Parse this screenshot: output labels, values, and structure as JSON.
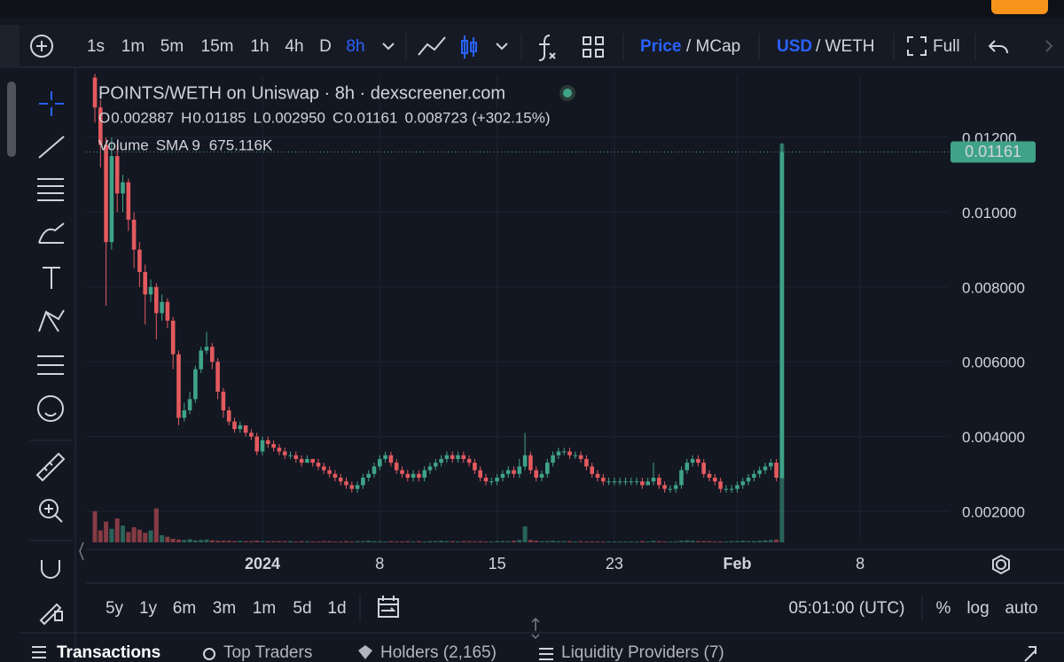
{
  "ui": {
    "intervals": [
      "1s",
      "1m",
      "5m",
      "15m",
      "1h",
      "4h",
      "D",
      "8h"
    ],
    "price": "Price",
    "mcap": "/ MCap",
    "usd": "USD",
    "weth": "/ WETH",
    "full": "Full",
    "ranges": [
      "5y",
      "1y",
      "6m",
      "3m",
      "1m",
      "5d",
      "1d"
    ],
    "clock": "05:01:00 (UTC)",
    "percent": "%",
    "log": "log",
    "auto": "auto",
    "tabs": [
      "Transactions",
      "Top Traders",
      "Holders (2,165)",
      "Liquidity Providers (7)"
    ]
  },
  "chart_data": {
    "type": "candlestick",
    "title": "POINTS/WETH on Uniswap · 8h · dexscreener.com",
    "readout": [
      [
        "O",
        "0.002887"
      ],
      [
        "H",
        "0.01185"
      ],
      [
        "L",
        "0.002950"
      ],
      [
        "C",
        "0.01161"
      ]
    ],
    "change": "0.008723 (+302.15%)",
    "volume_label": "Volume",
    "volume_sma": "SMA 9",
    "volume_sma_value": "675.116K",
    "up_color": "#3fa387",
    "down_color": "#e35a5e",
    "grid": true,
    "ylim": [
      0.00117,
      0.01366
    ],
    "yticks": [
      {
        "value": 0.002,
        "label": "0.002000"
      },
      {
        "value": 0.004,
        "label": "0.004000"
      },
      {
        "value": 0.006,
        "label": "0.006000"
      },
      {
        "value": 0.008,
        "label": "0.008000"
      },
      {
        "value": 0.01,
        "label": "0.01000"
      },
      {
        "value": 0.012,
        "label": "0.01200"
      }
    ],
    "last_price": {
      "value": 0.01161,
      "label": "0.01161"
    },
    "categories": [
      null,
      null,
      null,
      null,
      null,
      null,
      null,
      null,
      null,
      null,
      null,
      null,
      null,
      null,
      null,
      null,
      null,
      null,
      null,
      null,
      null,
      null,
      null,
      null,
      null,
      null,
      null,
      null,
      null,
      null,
      "2024",
      null,
      null,
      null,
      null,
      null,
      null,
      null,
      null,
      null,
      null,
      null,
      null,
      null,
      null,
      null,
      null,
      null,
      null,
      null,
      null,
      "8",
      null,
      null,
      null,
      null,
      null,
      null,
      null,
      null,
      null,
      null,
      null,
      null,
      null,
      null,
      null,
      null,
      null,
      null,
      null,
      null,
      "15",
      null,
      null,
      null,
      null,
      null,
      null,
      null,
      null,
      null,
      null,
      null,
      null,
      null,
      null,
      null,
      null,
      null,
      null,
      null,
      null,
      "23",
      null,
      null,
      null,
      null,
      null,
      null,
      null,
      null,
      null,
      null,
      null,
      null,
      null,
      null,
      null,
      null,
      null,
      null,
      null,
      null,
      null,
      "Feb",
      null,
      null,
      null,
      null,
      null,
      null,
      null,
      null,
      null,
      null,
      null,
      null,
      null,
      null,
      null,
      null,
      null,
      null,
      null,
      null,
      null,
      "8"
    ],
    "ohlc": [
      [
        0.0136,
        0.0137,
        0.0124,
        0.0128
      ],
      [
        0.0128,
        0.013,
        0.0112,
        0.0118
      ],
      [
        0.0118,
        0.012,
        0.0075,
        0.0092
      ],
      [
        0.0092,
        0.012,
        0.009,
        0.0115
      ],
      [
        0.0115,
        0.0118,
        0.01,
        0.0105
      ],
      [
        0.0105,
        0.011,
        0.01,
        0.0108
      ],
      [
        0.0108,
        0.0109,
        0.0095,
        0.0098
      ],
      [
        0.0098,
        0.01,
        0.0085,
        0.009
      ],
      [
        0.009,
        0.0092,
        0.008,
        0.0084
      ],
      [
        0.0084,
        0.0086,
        0.007,
        0.0078
      ],
      [
        0.0078,
        0.0082,
        0.0076,
        0.008
      ],
      [
        0.008,
        0.0081,
        0.0066,
        0.0073
      ],
      [
        0.0073,
        0.0078,
        0.0071,
        0.0076
      ],
      [
        0.0076,
        0.0077,
        0.0069,
        0.0071
      ],
      [
        0.0071,
        0.0072,
        0.0058,
        0.0062
      ],
      [
        0.0062,
        0.0063,
        0.0043,
        0.0045
      ],
      [
        0.0045,
        0.0049,
        0.0044,
        0.0047
      ],
      [
        0.0047,
        0.0052,
        0.0046,
        0.005
      ],
      [
        0.005,
        0.0059,
        0.0049,
        0.0058
      ],
      [
        0.0058,
        0.0064,
        0.0057,
        0.0063
      ],
      [
        0.0063,
        0.0068,
        0.0062,
        0.0064
      ],
      [
        0.0064,
        0.0065,
        0.0058,
        0.006
      ],
      [
        0.006,
        0.0061,
        0.005,
        0.0052
      ],
      [
        0.0052,
        0.0053,
        0.0045,
        0.0047
      ],
      [
        0.0047,
        0.0048,
        0.0043,
        0.0044
      ],
      [
        0.0044,
        0.0045,
        0.0041,
        0.0042
      ],
      [
        0.0042,
        0.0044,
        0.0041,
        0.0043
      ],
      [
        0.0043,
        0.0043,
        0.004,
        0.0041
      ],
      [
        0.0041,
        0.0042,
        0.0039,
        0.004
      ],
      [
        0.004,
        0.0041,
        0.0035,
        0.0036
      ],
      [
        0.0036,
        0.004,
        0.0035,
        0.0039
      ],
      [
        0.0039,
        0.004,
        0.0037,
        0.0038
      ],
      [
        0.0038,
        0.0039,
        0.0036,
        0.0037
      ],
      [
        0.0037,
        0.0038,
        0.0035,
        0.0036
      ],
      [
        0.0036,
        0.0037,
        0.0034,
        0.0035
      ],
      [
        0.0035,
        0.0036,
        0.0034,
        0.0035
      ],
      [
        0.0035,
        0.0036,
        0.0033,
        0.0034
      ],
      [
        0.0034,
        0.0035,
        0.0032,
        0.0033
      ],
      [
        0.0033,
        0.0035,
        0.0033,
        0.0034
      ],
      [
        0.0034,
        0.0034,
        0.0032,
        0.0033
      ],
      [
        0.0033,
        0.0034,
        0.0031,
        0.0032
      ],
      [
        0.0032,
        0.0033,
        0.003,
        0.0031
      ],
      [
        0.0031,
        0.0032,
        0.0029,
        0.003
      ],
      [
        0.003,
        0.0031,
        0.0028,
        0.0029
      ],
      [
        0.0029,
        0.003,
        0.0027,
        0.0028
      ],
      [
        0.0028,
        0.0029,
        0.0026,
        0.0027
      ],
      [
        0.0027,
        0.0028,
        0.0025,
        0.0026
      ],
      [
        0.0026,
        0.0028,
        0.0025,
        0.0027
      ],
      [
        0.0027,
        0.003,
        0.0026,
        0.0029
      ],
      [
        0.0029,
        0.0031,
        0.0028,
        0.003
      ],
      [
        0.003,
        0.0033,
        0.0029,
        0.0032
      ],
      [
        0.0032,
        0.0035,
        0.0031,
        0.0034
      ],
      [
        0.0034,
        0.0036,
        0.0033,
        0.0035
      ],
      [
        0.0035,
        0.0036,
        0.0032,
        0.0033
      ],
      [
        0.0033,
        0.0034,
        0.003,
        0.0031
      ],
      [
        0.0031,
        0.0032,
        0.0029,
        0.003
      ],
      [
        0.003,
        0.0031,
        0.0028,
        0.0029
      ],
      [
        0.0029,
        0.0031,
        0.0028,
        0.003
      ],
      [
        0.003,
        0.0031,
        0.0028,
        0.0029
      ],
      [
        0.0029,
        0.0032,
        0.0028,
        0.0031
      ],
      [
        0.0031,
        0.0033,
        0.003,
        0.0032
      ],
      [
        0.0032,
        0.0034,
        0.0031,
        0.0033
      ],
      [
        0.0033,
        0.0035,
        0.0032,
        0.0034
      ],
      [
        0.0034,
        0.0036,
        0.0033,
        0.0035
      ],
      [
        0.0035,
        0.0036,
        0.0033,
        0.0034
      ],
      [
        0.0034,
        0.0036,
        0.0033,
        0.0035
      ],
      [
        0.0035,
        0.0036,
        0.0033,
        0.0034
      ],
      [
        0.0034,
        0.0035,
        0.0032,
        0.0033
      ],
      [
        0.0033,
        0.0034,
        0.003,
        0.0031
      ],
      [
        0.0031,
        0.0032,
        0.0028,
        0.0029
      ],
      [
        0.0029,
        0.003,
        0.0027,
        0.0028
      ],
      [
        0.0028,
        0.0029,
        0.0027,
        0.0028
      ],
      [
        0.0028,
        0.003,
        0.0027,
        0.0029
      ],
      [
        0.0029,
        0.0031,
        0.0028,
        0.003
      ],
      [
        0.003,
        0.0032,
        0.0029,
        0.0031
      ],
      [
        0.0031,
        0.0032,
        0.0029,
        0.003
      ],
      [
        0.003,
        0.0034,
        0.0029,
        0.0032
      ],
      [
        0.0032,
        0.0041,
        0.0031,
        0.0035
      ],
      [
        0.0035,
        0.0036,
        0.003,
        0.0031
      ],
      [
        0.0031,
        0.0032,
        0.0028,
        0.0029
      ],
      [
        0.0029,
        0.0031,
        0.0028,
        0.003
      ],
      [
        0.003,
        0.0034,
        0.0029,
        0.0033
      ],
      [
        0.0033,
        0.0036,
        0.0032,
        0.0035
      ],
      [
        0.0035,
        0.0037,
        0.0034,
        0.0036
      ],
      [
        0.0036,
        0.0037,
        0.0035,
        0.0036
      ],
      [
        0.0036,
        0.0037,
        0.0034,
        0.0035
      ],
      [
        0.0035,
        0.0036,
        0.0034,
        0.0035
      ],
      [
        0.0035,
        0.0036,
        0.0033,
        0.0034
      ],
      [
        0.0034,
        0.0035,
        0.0031,
        0.0032
      ],
      [
        0.0032,
        0.0033,
        0.0029,
        0.003
      ],
      [
        0.003,
        0.0031,
        0.0028,
        0.0029
      ],
      [
        0.0029,
        0.003,
        0.0027,
        0.0028
      ],
      [
        0.0028,
        0.0029,
        0.0027,
        0.0028
      ],
      [
        0.0028,
        0.0029,
        0.0027,
        0.0028
      ],
      [
        0.0028,
        0.0029,
        0.0027,
        0.0028
      ],
      [
        0.0028,
        0.0029,
        0.0027,
        0.0028
      ],
      [
        0.0028,
        0.0029,
        0.0027,
        0.0028
      ],
      [
        0.0028,
        0.0029,
        0.0027,
        0.0028
      ],
      [
        0.0028,
        0.0029,
        0.0026,
        0.0027
      ],
      [
        0.0027,
        0.0029,
        0.0027,
        0.0028
      ],
      [
        0.0028,
        0.0033,
        0.0027,
        0.0029
      ],
      [
        0.0029,
        0.003,
        0.0026,
        0.0027
      ],
      [
        0.0027,
        0.0028,
        0.0025,
        0.0026
      ],
      [
        0.0026,
        0.0027,
        0.0025,
        0.0026
      ],
      [
        0.0026,
        0.0028,
        0.0025,
        0.0027
      ],
      [
        0.0027,
        0.0032,
        0.0026,
        0.0031
      ],
      [
        0.0031,
        0.0034,
        0.003,
        0.0033
      ],
      [
        0.0033,
        0.0035,
        0.0032,
        0.0034
      ],
      [
        0.0034,
        0.0035,
        0.0032,
        0.0033
      ],
      [
        0.0033,
        0.0034,
        0.0029,
        0.003
      ],
      [
        0.003,
        0.0031,
        0.0028,
        0.0029
      ],
      [
        0.0029,
        0.003,
        0.0027,
        0.0028
      ],
      [
        0.0028,
        0.0029,
        0.0025,
        0.0026
      ],
      [
        0.0026,
        0.0027,
        0.0025,
        0.0026
      ],
      [
        0.0026,
        0.0027,
        0.0025,
        0.0026
      ],
      [
        0.0026,
        0.0028,
        0.0025,
        0.0027
      ],
      [
        0.0027,
        0.0029,
        0.0026,
        0.0028
      ],
      [
        0.0028,
        0.003,
        0.0027,
        0.0029
      ],
      [
        0.0029,
        0.0031,
        0.0028,
        0.003
      ],
      [
        0.003,
        0.0032,
        0.0029,
        0.0031
      ],
      [
        0.0031,
        0.0033,
        0.003,
        0.0032
      ],
      [
        0.0032,
        0.0034,
        0.0031,
        0.0033
      ],
      [
        0.0033,
        0.0034,
        0.0028,
        0.0029
      ],
      [
        0.002887,
        0.01185,
        0.00295,
        0.01161
      ],
      null,
      null,
      null,
      null,
      null,
      null,
      null,
      null,
      null,
      null,
      null,
      null,
      null,
      null
    ],
    "volume": [
      780,
      300,
      520,
      340,
      600,
      420,
      260,
      380,
      320,
      240,
      300,
      850,
      180,
      140,
      90,
      70,
      60,
      80,
      50,
      60,
      70,
      50,
      40,
      40,
      40,
      30,
      40,
      30,
      30,
      40,
      30,
      30,
      30,
      30,
      30,
      30,
      20,
      30,
      30,
      20,
      20,
      30,
      30,
      20,
      20,
      30,
      20,
      30,
      30,
      40,
      30,
      30,
      20,
      30,
      20,
      20,
      30,
      20,
      30,
      20,
      30,
      30,
      40,
      30,
      30,
      20,
      30,
      30,
      20,
      30,
      20,
      20,
      30,
      30,
      30,
      40,
      60,
      400,
      60,
      40,
      30,
      30,
      40,
      30,
      30,
      30,
      20,
      30,
      20,
      20,
      20,
      20,
      20,
      20,
      20,
      20,
      20,
      20,
      30,
      20,
      40,
      30,
      20,
      20,
      20,
      40,
      50,
      40,
      30,
      30,
      30,
      20,
      20,
      20,
      30,
      30,
      40,
      30,
      30,
      40,
      50,
      60,
      70,
      10000,
      null,
      null,
      null,
      null,
      null,
      null,
      null,
      null,
      null,
      null,
      null,
      null,
      null,
      null
    ]
  }
}
